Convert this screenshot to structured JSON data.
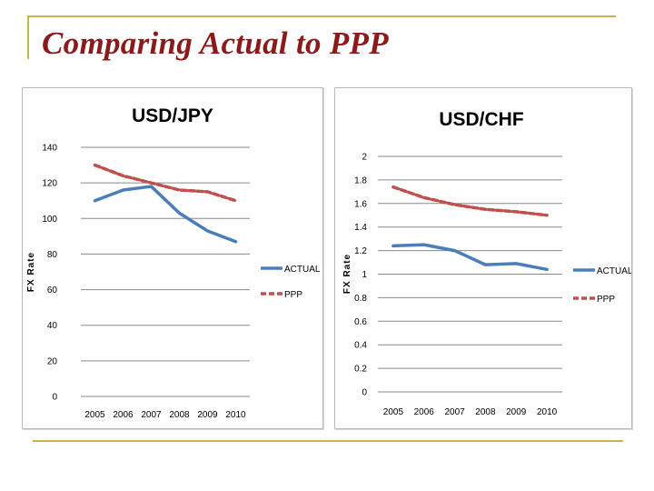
{
  "slide": {
    "title": "Comparing Actual to PPP"
  },
  "colors": {
    "actual": "#4a7ebb",
    "ppp": "#c0504d",
    "gridline": "#8a8a8a",
    "title_color": "#8b1a1a",
    "accent_rule": "#c8b44a"
  },
  "chart_data": [
    {
      "type": "line",
      "title": "USD/JPY",
      "ylabel": "FX Rate",
      "xlabel": "",
      "categories": [
        "2005",
        "2006",
        "2007",
        "2008",
        "2009",
        "2010"
      ],
      "yticks": [
        "0",
        "20",
        "40",
        "60",
        "80",
        "100",
        "120",
        "140"
      ],
      "ylim": [
        0,
        140
      ],
      "grid": true,
      "legend": "right",
      "series": [
        {
          "name": "ACTUAL",
          "style": "solid",
          "values": [
            110,
            116,
            118,
            103,
            93,
            87
          ]
        },
        {
          "name": "PPP",
          "style": "dashed",
          "values": [
            130,
            124,
            120,
            116,
            115,
            110
          ]
        }
      ]
    },
    {
      "type": "line",
      "title": "USD/CHF",
      "ylabel": "FX Rate",
      "xlabel": "",
      "categories": [
        "2005",
        "2006",
        "2007",
        "2008",
        "2009",
        "2010"
      ],
      "yticks": [
        "0",
        "0.2",
        "0.4",
        "0.6",
        "0.8",
        "1",
        "1.2",
        "1.4",
        "1.6",
        "1.8",
        "2"
      ],
      "ylim": [
        0,
        2
      ],
      "grid": true,
      "legend": "right",
      "series": [
        {
          "name": "ACTUAL",
          "style": "solid",
          "values": [
            1.24,
            1.25,
            1.2,
            1.08,
            1.09,
            1.04
          ]
        },
        {
          "name": "PPP",
          "style": "dashed",
          "values": [
            1.74,
            1.65,
            1.59,
            1.55,
            1.53,
            1.5
          ]
        }
      ]
    }
  ]
}
